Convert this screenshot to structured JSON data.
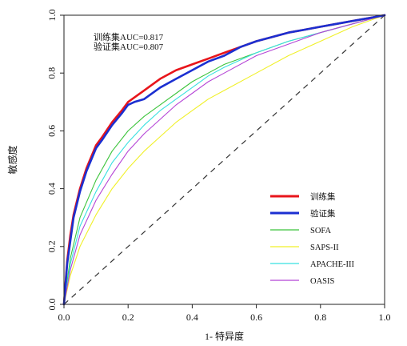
{
  "chart_data": {
    "type": "line",
    "title": "",
    "xlabel": "1- 特异度",
    "ylabel": "敏感度",
    "xlim": [
      0,
      1
    ],
    "ylim": [
      0,
      1
    ],
    "xticks": [
      "0.0",
      "0.2",
      "0.4",
      "0.6",
      "0.8",
      "1.0"
    ],
    "yticks": [
      "0.0",
      "0.2",
      "0.4",
      "0.6",
      "0.8",
      "1.0"
    ],
    "grid": false,
    "legend_position": "bottom-right",
    "annotations": [
      "训练集AUC=0.817",
      "验证集AUC=0.807"
    ],
    "reference_line": {
      "x": [
        0,
        1
      ],
      "y": [
        0,
        1
      ],
      "style": "dashed",
      "color": "#333333"
    },
    "series": [
      {
        "name": "训练集",
        "color": "#e8151b",
        "width": 2.6,
        "x": [
          0,
          0.01,
          0.02,
          0.03,
          0.05,
          0.07,
          0.1,
          0.12,
          0.15,
          0.18,
          0.2,
          0.25,
          0.3,
          0.35,
          0.4,
          0.45,
          0.5,
          0.55,
          0.6,
          0.65,
          0.7,
          0.75,
          0.8,
          0.85,
          0.9,
          0.95,
          1.0
        ],
        "y": [
          0,
          0.15,
          0.24,
          0.31,
          0.4,
          0.47,
          0.55,
          0.58,
          0.63,
          0.67,
          0.7,
          0.74,
          0.78,
          0.81,
          0.83,
          0.85,
          0.87,
          0.89,
          0.91,
          0.925,
          0.94,
          0.95,
          0.96,
          0.97,
          0.98,
          0.99,
          1.0
        ]
      },
      {
        "name": "验证集",
        "color": "#1b2fd1",
        "width": 2.6,
        "x": [
          0,
          0.01,
          0.02,
          0.03,
          0.05,
          0.07,
          0.1,
          0.12,
          0.15,
          0.18,
          0.2,
          0.22,
          0.25,
          0.3,
          0.35,
          0.4,
          0.45,
          0.5,
          0.55,
          0.6,
          0.65,
          0.7,
          0.75,
          0.8,
          0.85,
          0.9,
          0.95,
          1.0
        ],
        "y": [
          0,
          0.14,
          0.22,
          0.3,
          0.39,
          0.46,
          0.54,
          0.57,
          0.62,
          0.66,
          0.69,
          0.7,
          0.71,
          0.75,
          0.78,
          0.81,
          0.84,
          0.86,
          0.89,
          0.91,
          0.925,
          0.94,
          0.95,
          0.96,
          0.97,
          0.98,
          0.99,
          1.0
        ]
      },
      {
        "name": "SOFA",
        "color": "#3cc43c",
        "width": 1.1,
        "x": [
          0,
          0.02,
          0.05,
          0.1,
          0.15,
          0.2,
          0.25,
          0.3,
          0.35,
          0.4,
          0.45,
          0.5,
          0.6,
          0.7,
          0.8,
          0.9,
          1.0
        ],
        "y": [
          0,
          0.16,
          0.3,
          0.43,
          0.53,
          0.6,
          0.65,
          0.69,
          0.73,
          0.77,
          0.8,
          0.83,
          0.87,
          0.91,
          0.94,
          0.97,
          1.0
        ]
      },
      {
        "name": "SAPS-II",
        "color": "#f0f028",
        "width": 1.1,
        "x": [
          0,
          0.02,
          0.05,
          0.1,
          0.15,
          0.2,
          0.25,
          0.3,
          0.35,
          0.4,
          0.45,
          0.5,
          0.6,
          0.7,
          0.8,
          0.9,
          1.0
        ],
        "y": [
          0,
          0.1,
          0.2,
          0.31,
          0.4,
          0.47,
          0.53,
          0.58,
          0.63,
          0.67,
          0.71,
          0.74,
          0.8,
          0.86,
          0.91,
          0.96,
          1.0
        ]
      },
      {
        "name": "APACHE-III",
        "color": "#38e0e0",
        "width": 1.1,
        "x": [
          0,
          0.02,
          0.05,
          0.1,
          0.15,
          0.2,
          0.25,
          0.3,
          0.35,
          0.4,
          0.45,
          0.5,
          0.6,
          0.7,
          0.8,
          0.9,
          1.0
        ],
        "y": [
          0,
          0.14,
          0.27,
          0.39,
          0.49,
          0.56,
          0.62,
          0.67,
          0.71,
          0.75,
          0.79,
          0.82,
          0.87,
          0.91,
          0.94,
          0.97,
          1.0
        ]
      },
      {
        "name": "OASIS",
        "color": "#b545d6",
        "width": 1.1,
        "x": [
          0,
          0.02,
          0.05,
          0.1,
          0.15,
          0.2,
          0.25,
          0.3,
          0.35,
          0.4,
          0.45,
          0.5,
          0.6,
          0.7,
          0.8,
          0.9,
          1.0
        ],
        "y": [
          0,
          0.12,
          0.24,
          0.36,
          0.45,
          0.53,
          0.59,
          0.64,
          0.69,
          0.73,
          0.77,
          0.8,
          0.86,
          0.9,
          0.94,
          0.97,
          1.0
        ]
      }
    ]
  }
}
